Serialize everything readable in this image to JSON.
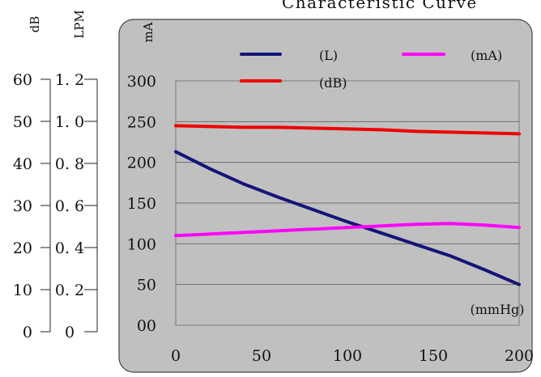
{
  "chart_data": {
    "type": "line",
    "title": "Characteristic Curve",
    "xlabel": "(mmHg)",
    "ylabel": "mA",
    "x": [
      0,
      20,
      40,
      60,
      80,
      100,
      120,
      140,
      160,
      180,
      200
    ],
    "xlim": [
      0,
      200
    ],
    "ylim": [
      0,
      300
    ],
    "x_ticks": [
      "0",
      "50",
      "100",
      "150",
      "200"
    ],
    "y_ticks": [
      "00",
      "50",
      "100",
      "150",
      "200",
      "250",
      "300"
    ],
    "grid": true,
    "legend_position": "top",
    "series": [
      {
        "name": "(L)",
        "color": "#141478",
        "values": [
          213,
          192,
          173,
          157,
          142,
          127,
          113,
          99,
          85,
          68,
          50
        ]
      },
      {
        "name": "(mA)",
        "color": "#ff00ff",
        "values": [
          110,
          112,
          114,
          116,
          118,
          120,
          122,
          124,
          125,
          123,
          120
        ]
      },
      {
        "name": "(dB)",
        "color": "#ee0000",
        "values": [
          245,
          244,
          243,
          243,
          242,
          241,
          240,
          238,
          237,
          236,
          235
        ]
      }
    ],
    "secondary_axes": [
      {
        "label": "dB",
        "ticks": [
          "0",
          "10",
          "20",
          "30",
          "40",
          "50",
          "60"
        ]
      },
      {
        "label": "LPM",
        "ticks": [
          "0",
          "0. 2",
          "0. 4",
          "0. 6",
          "0. 8",
          "1. 0",
          "1. 2"
        ]
      }
    ]
  }
}
